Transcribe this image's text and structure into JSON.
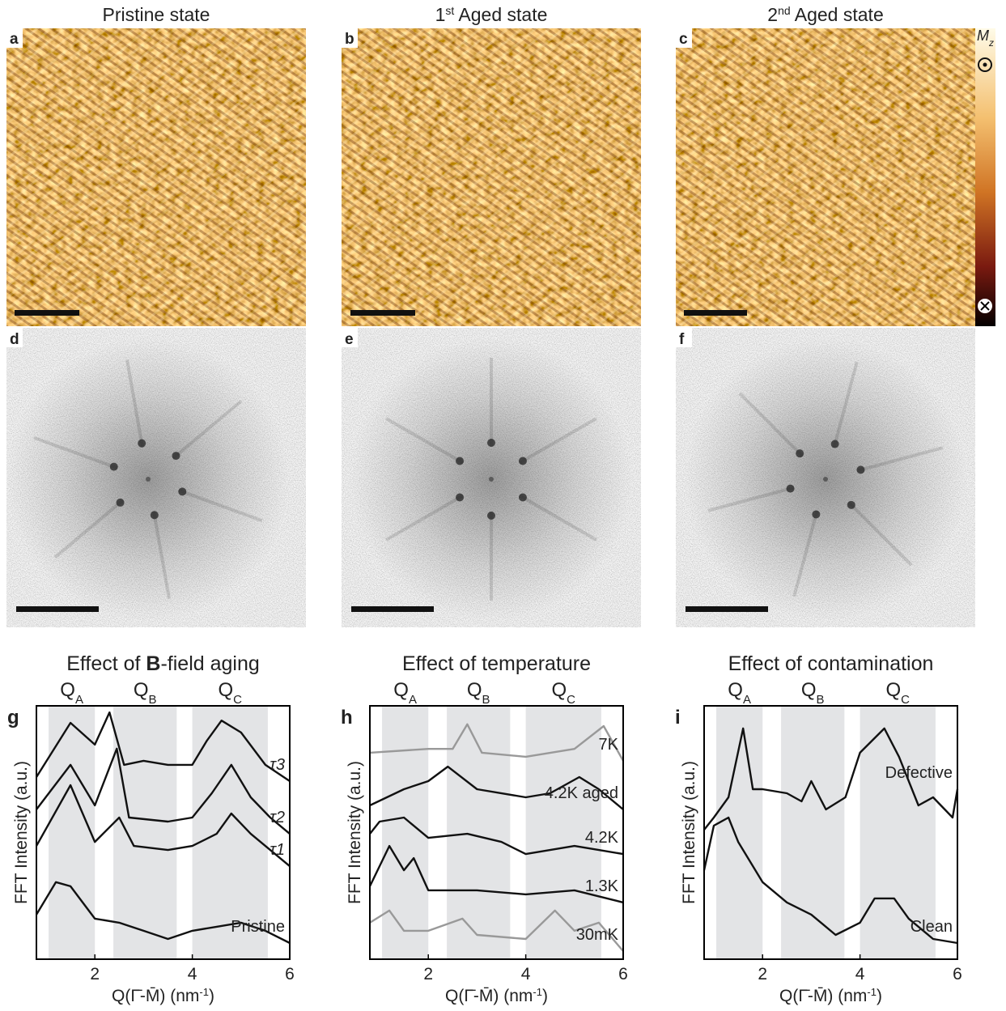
{
  "panels": [
    {
      "letter": "a",
      "title": [
        "Pristine state"
      ]
    },
    {
      "letter": "b",
      "title": [
        "1",
        "st",
        " Aged state"
      ]
    },
    {
      "letter": "c",
      "title": [
        "2",
        "nd",
        " Aged state"
      ]
    }
  ],
  "fft_panels": [
    "d",
    "e",
    "f"
  ],
  "colorbar": {
    "label": [
      "M",
      "z"
    ]
  },
  "chart_data": [
    {
      "type": "line",
      "letter": "g",
      "title": [
        "Effect of ",
        "B",
        "-field aging"
      ],
      "bands": [
        {
          "label": "Q",
          "sub": "A",
          "range": [
            1.05,
            2.0
          ]
        },
        {
          "label": "Q",
          "sub": "B",
          "range": [
            2.38,
            3.68
          ]
        },
        {
          "label": "Q",
          "sub": "C",
          "range": [
            4.0,
            5.55
          ]
        }
      ],
      "xlim": [
        0.8,
        6
      ],
      "xticks": [
        2,
        4,
        6
      ],
      "ylim": [
        0,
        100
      ],
      "xlabel": [
        "Q(Γ̄-M̄) (nm",
        "-1",
        ")"
      ],
      "ylabel": "FFT Intensity (a.u.)",
      "series": [
        {
          "name": "τ3",
          "color": "#111111",
          "x": [
            0.8,
            1.5,
            2.0,
            2.3,
            2.6,
            3.0,
            3.5,
            4.0,
            4.3,
            4.6,
            5.0,
            5.5,
            6.0
          ],
          "values": [
            71.9,
            93.3,
            84.7,
            97.4,
            76.7,
            78.3,
            76.7,
            76.7,
            86.3,
            94.2,
            89.5,
            76.7,
            70.3
          ]
        },
        {
          "name": "τ2",
          "color": "#111111",
          "x": [
            0.8,
            1.5,
            2.0,
            2.45,
            2.7,
            3.5,
            4.0,
            4.4,
            4.8,
            5.2,
            5.6,
            6.0
          ],
          "values": [
            59.1,
            76.7,
            60.7,
            83.1,
            55.9,
            54.3,
            55.9,
            65.5,
            76.7,
            63.9,
            55.9,
            49.5
          ]
        },
        {
          "name": "τ1",
          "color": "#111111",
          "x": [
            0.8,
            1.5,
            2.0,
            2.5,
            2.8,
            3.5,
            4.0,
            4.5,
            4.8,
            5.2,
            5.6,
            6.0
          ],
          "values": [
            44.7,
            68.7,
            46.3,
            55.9,
            44.7,
            43.1,
            44.7,
            49.5,
            57.5,
            49.5,
            43.1,
            36.7
          ]
        },
        {
          "name": "Pristine",
          "color": "#111111",
          "x": [
            0.8,
            1.2,
            1.5,
            2.0,
            2.5,
            3.0,
            3.5,
            4.0,
            4.5,
            5.0,
            5.5,
            6.0
          ],
          "values": [
            17.6,
            30.4,
            28.8,
            16.0,
            14.4,
            11.2,
            8.0,
            11.2,
            12.8,
            14.4,
            11.2,
            6.4
          ]
        }
      ]
    },
    {
      "type": "line",
      "letter": "h",
      "title": [
        "Effect of temperature"
      ],
      "bands": [
        {
          "label": "Q",
          "sub": "A",
          "range": [
            1.05,
            2.0
          ]
        },
        {
          "label": "Q",
          "sub": "B",
          "range": [
            2.38,
            3.68
          ]
        },
        {
          "label": "Q",
          "sub": "C",
          "range": [
            4.0,
            5.55
          ]
        }
      ],
      "xlim": [
        0.8,
        6
      ],
      "xticks": [
        2,
        4,
        6
      ],
      "ylim": [
        0,
        100
      ],
      "xlabel": [
        "Q(Γ̄-M̄) (nm",
        "-1",
        ")"
      ],
      "ylabel": "FFT Intensity (a.u.)",
      "series": [
        {
          "name": "7K",
          "color": "#999999",
          "x": [
            0.8,
            2.0,
            2.5,
            2.8,
            3.1,
            4.0,
            5.0,
            5.6,
            6.0
          ],
          "values": [
            81.5,
            83.0,
            83.0,
            92.7,
            81.5,
            79.9,
            83.0,
            92.0,
            78.3
          ]
        },
        {
          "name": "4.2K aged",
          "color": "#111111",
          "x": [
            0.8,
            1.5,
            2.0,
            2.4,
            3.0,
            4.0,
            4.5,
            5.1,
            5.5,
            6.0
          ],
          "values": [
            60.7,
            67.1,
            70.3,
            76.0,
            67.1,
            63.9,
            65.5,
            71.9,
            67.1,
            59.1
          ]
        },
        {
          "name": "4.2K",
          "color": "#111111",
          "x": [
            0.8,
            1.0,
            1.5,
            2.0,
            2.8,
            3.5,
            4.0,
            4.5,
            5.0,
            5.5,
            6.0
          ],
          "values": [
            49.5,
            54.3,
            55.9,
            47.9,
            49.5,
            46.3,
            41.5,
            43.1,
            44.7,
            43.1,
            41.5
          ]
        },
        {
          "name": "1.3K",
          "color": "#111111",
          "x": [
            0.8,
            1.2,
            1.5,
            1.7,
            2.0,
            3.0,
            4.0,
            5.0,
            6.0
          ],
          "values": [
            28.8,
            44.7,
            35.1,
            39.9,
            27.2,
            27.2,
            25.6,
            27.2,
            22.4
          ]
        },
        {
          "name": "30mK",
          "color": "#999999",
          "x": [
            0.8,
            1.2,
            1.5,
            2.0,
            2.7,
            3.0,
            4.0,
            4.6,
            5.0,
            5.5,
            6.0
          ],
          "values": [
            14.4,
            19.2,
            11.2,
            11.2,
            16.0,
            9.6,
            8.0,
            19.2,
            11.2,
            14.4,
            3.2
          ]
        }
      ]
    },
    {
      "type": "line",
      "letter": "i",
      "title": [
        "Effect of contamination"
      ],
      "bands": [
        {
          "label": "Q",
          "sub": "A",
          "range": [
            1.05,
            2.0
          ]
        },
        {
          "label": "Q",
          "sub": "B",
          "range": [
            2.38,
            3.68
          ]
        },
        {
          "label": "Q",
          "sub": "C",
          "range": [
            4.0,
            5.55
          ]
        }
      ],
      "xlim": [
        0.8,
        6
      ],
      "xticks": [
        2,
        4,
        6
      ],
      "ylim": [
        0,
        100
      ],
      "xlabel": [
        "Q(Γ̄-M̄) (nm",
        "-1",
        ")"
      ],
      "ylabel": "FFT Intensity (a.u.)",
      "series": [
        {
          "name": "Defective",
          "color": "#111111",
          "x": [
            0.8,
            1.0,
            1.3,
            1.6,
            1.8,
            2.0,
            2.5,
            2.8,
            3.0,
            3.3,
            3.7,
            4.0,
            4.5,
            4.8,
            5.2,
            5.5,
            5.9,
            6.0
          ],
          "values": [
            51.1,
            55.9,
            63.9,
            91.1,
            67.1,
            67.1,
            65.5,
            62.3,
            70.3,
            59.1,
            63.9,
            81.5,
            91.1,
            79.9,
            60.7,
            63.9,
            55.9,
            67.1
          ]
        },
        {
          "name": "Clean",
          "color": "#111111",
          "x": [
            0.8,
            1.0,
            1.3,
            1.5,
            2.0,
            2.5,
            3.0,
            3.5,
            4.0,
            4.3,
            4.7,
            5.0,
            5.5,
            6.0
          ],
          "values": [
            35.1,
            52.7,
            55.9,
            46.3,
            30.4,
            22.4,
            17.6,
            9.6,
            14.4,
            24.0,
            24.0,
            16.0,
            8.0,
            6.4
          ]
        }
      ]
    }
  ]
}
